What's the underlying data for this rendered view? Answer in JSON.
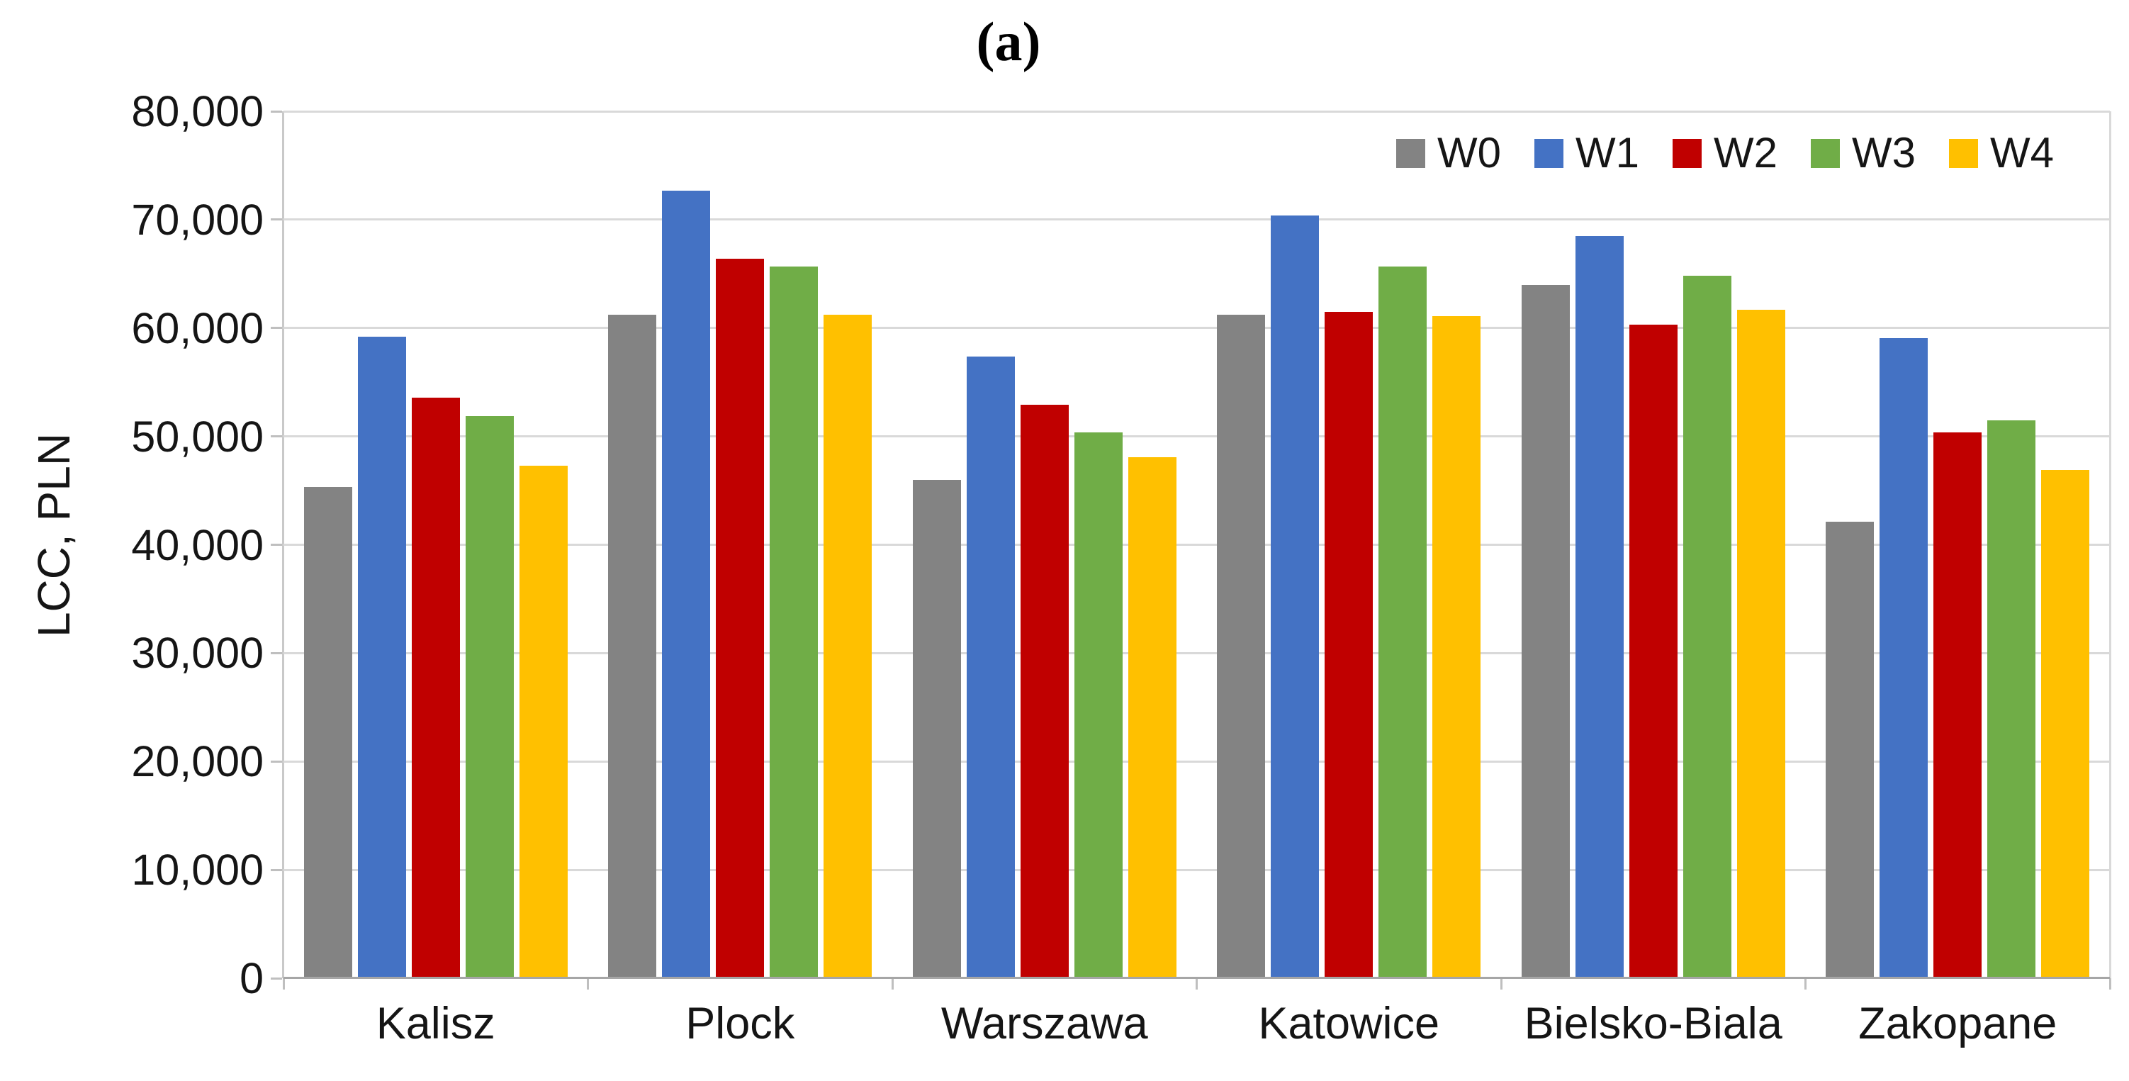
{
  "title": "(a)",
  "chart_data": {
    "type": "bar",
    "title": "(a)",
    "xlabel": "",
    "ylabel": "LCC, PLN",
    "ylim": [
      0,
      80000
    ],
    "y_tick_step": 10000,
    "y_tick_labels": [
      "0",
      "10,000",
      "20,000",
      "30,000",
      "40,000",
      "50,000",
      "60,000",
      "70,000",
      "80,000"
    ],
    "grid": "horizontal",
    "legend_position": "top-right-inside",
    "background": "#ffffff",
    "gridline_color": "#d9d9d9",
    "categories": [
      "Kalisz",
      "Plock",
      "Warszawa",
      "Katowice",
      "Bielsko-Biala",
      "Zakopane"
    ],
    "series": [
      {
        "name": "W0",
        "color": "#838383",
        "values": [
          45300,
          61200,
          46000,
          61200,
          64000,
          42100
        ]
      },
      {
        "name": "W1",
        "color": "#4472c4",
        "values": [
          59200,
          72700,
          57400,
          70400,
          68500,
          59100
        ]
      },
      {
        "name": "W2",
        "color": "#c00000",
        "values": [
          53600,
          66400,
          52900,
          61500,
          60300,
          50400
        ]
      },
      {
        "name": "W3",
        "color": "#70ad47",
        "values": [
          51900,
          65700,
          50400,
          65700,
          64800,
          51500
        ]
      },
      {
        "name": "W4",
        "color": "#ffc000",
        "values": [
          47300,
          61200,
          48100,
          61100,
          61700,
          46900
        ]
      }
    ]
  }
}
